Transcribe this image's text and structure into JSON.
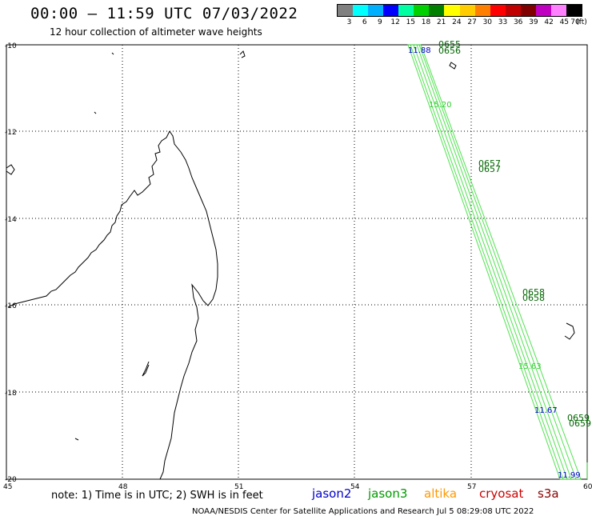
{
  "header": {
    "title": "00:00 – 11:59 UTC 07/03/2022",
    "subtitle": "12 hour collection of altimeter wave heights"
  },
  "legend": {
    "colors": [
      "#808080",
      "#00ffff",
      "#00b0ff",
      "#0000ff",
      "#00ffa0",
      "#00d000",
      "#008000",
      "#ffff00",
      "#ffcc00",
      "#ff8000",
      "#ff0000",
      "#c00000",
      "#800000",
      "#c000c0",
      "#ff80ff",
      "#000000"
    ],
    "ticks": [
      "3",
      "6",
      "9",
      "12",
      "15",
      "18",
      "21",
      "24",
      "27",
      "30",
      "33",
      "36",
      "39",
      "42",
      "45",
      "70"
    ],
    "unit": "(ft)"
  },
  "axes": {
    "lat_labels": [
      "-10",
      "-12",
      "-14",
      "-16",
      "-18",
      "-20"
    ],
    "lon_labels": [
      "45",
      "48",
      "51",
      "54",
      "57",
      "60"
    ]
  },
  "track": {
    "color": "#33dd33",
    "time_labels": [
      "0655",
      "0656",
      "0657",
      "0657",
      "0658",
      "0658",
      "0659",
      "0659"
    ],
    "swh_values": [
      {
        "text": "11.88",
        "color": "#0000cc"
      },
      {
        "text": "15.20",
        "color": "#33cc33"
      },
      {
        "text": "15.63",
        "color": "#33cc33"
      },
      {
        "text": "11.67",
        "color": "#0000cc"
      },
      {
        "text": "11.99",
        "color": "#0000cc"
      }
    ]
  },
  "footer": {
    "note": "note: 1) Time is in UTC; 2) SWH is in feet",
    "missions": [
      {
        "name": "jason2",
        "color": "#0000cc"
      },
      {
        "name": "jason3",
        "color": "#009900"
      },
      {
        "name": "altika",
        "color": "#ff9900"
      },
      {
        "name": "cryosat",
        "color": "#cc0000"
      },
      {
        "name": "s3a",
        "color": "#880000"
      }
    ],
    "credit": "NOAA/NESDIS Center for Satellite Applications and Research    Jul  5 08:29:08 UTC 2022"
  }
}
